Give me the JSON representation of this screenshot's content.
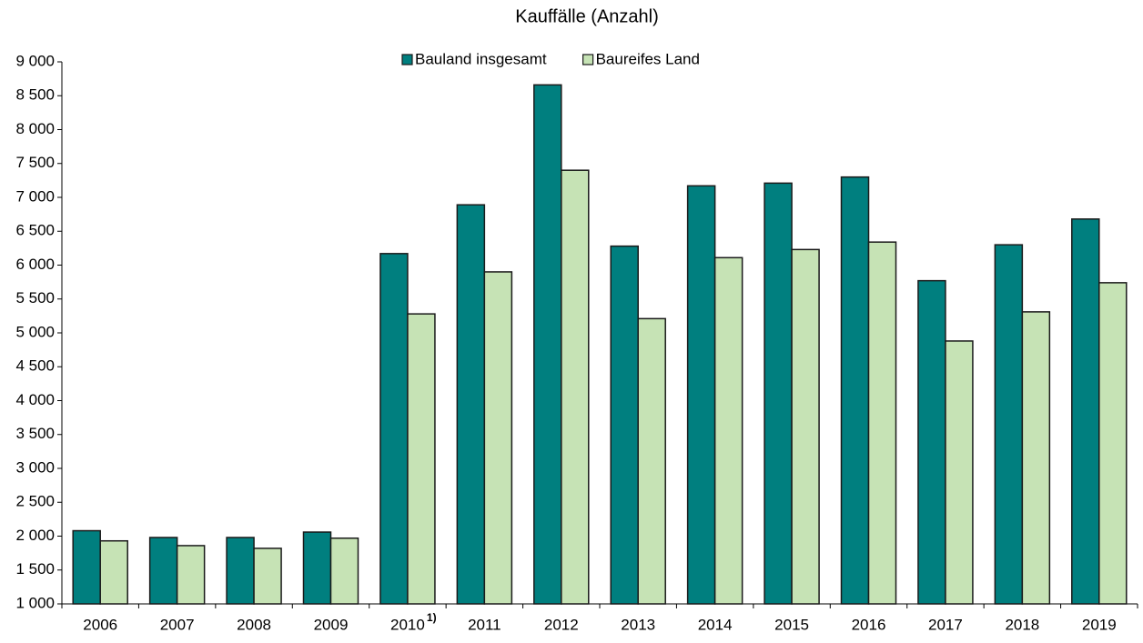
{
  "chart_data": {
    "type": "bar",
    "title": "Kauffälle (Anzahl)",
    "categories": [
      "2006",
      "2007",
      "2008",
      "2009",
      "2010",
      "2011",
      "2012",
      "2013",
      "2014",
      "2015",
      "2016",
      "2017",
      "2018",
      "2019"
    ],
    "annotations": [
      {
        "category": "2010",
        "text": "1)"
      }
    ],
    "series": [
      {
        "name": "Bauland insgesamt",
        "color": "#007f7f",
        "values": [
          2080,
          1980,
          1980,
          2060,
          6170,
          6890,
          8660,
          6280,
          7170,
          7210,
          7300,
          5770,
          6300,
          6680
        ]
      },
      {
        "name": "Baureifes Land",
        "color": "#c6e3b5",
        "values": [
          1930,
          1860,
          1820,
          1970,
          5280,
          5900,
          7400,
          5210,
          6110,
          6230,
          6340,
          4880,
          5310,
          5740
        ]
      }
    ],
    "ylim": [
      1000,
      9000
    ],
    "yticks": [
      {
        "value": 1000,
        "label": "1 000"
      },
      {
        "value": 1500,
        "label": "1 500"
      },
      {
        "value": 2000,
        "label": "2 000"
      },
      {
        "value": 2500,
        "label": "2 500"
      },
      {
        "value": 3000,
        "label": "3 000"
      },
      {
        "value": 3500,
        "label": "3 500"
      },
      {
        "value": 4000,
        "label": "4 000"
      },
      {
        "value": 4500,
        "label": "4 500"
      },
      {
        "value": 5000,
        "label": "5 000"
      },
      {
        "value": 5500,
        "label": "5 500"
      },
      {
        "value": 6000,
        "label": "6 000"
      },
      {
        "value": 6500,
        "label": "6 500"
      },
      {
        "value": 7000,
        "label": "7 000"
      },
      {
        "value": 7500,
        "label": "7 500"
      },
      {
        "value": 8000,
        "label": "8 000"
      },
      {
        "value": 8500,
        "label": "8 500"
      },
      {
        "value": 9000,
        "label": "9 000"
      }
    ],
    "grid": false,
    "legend": "top"
  }
}
